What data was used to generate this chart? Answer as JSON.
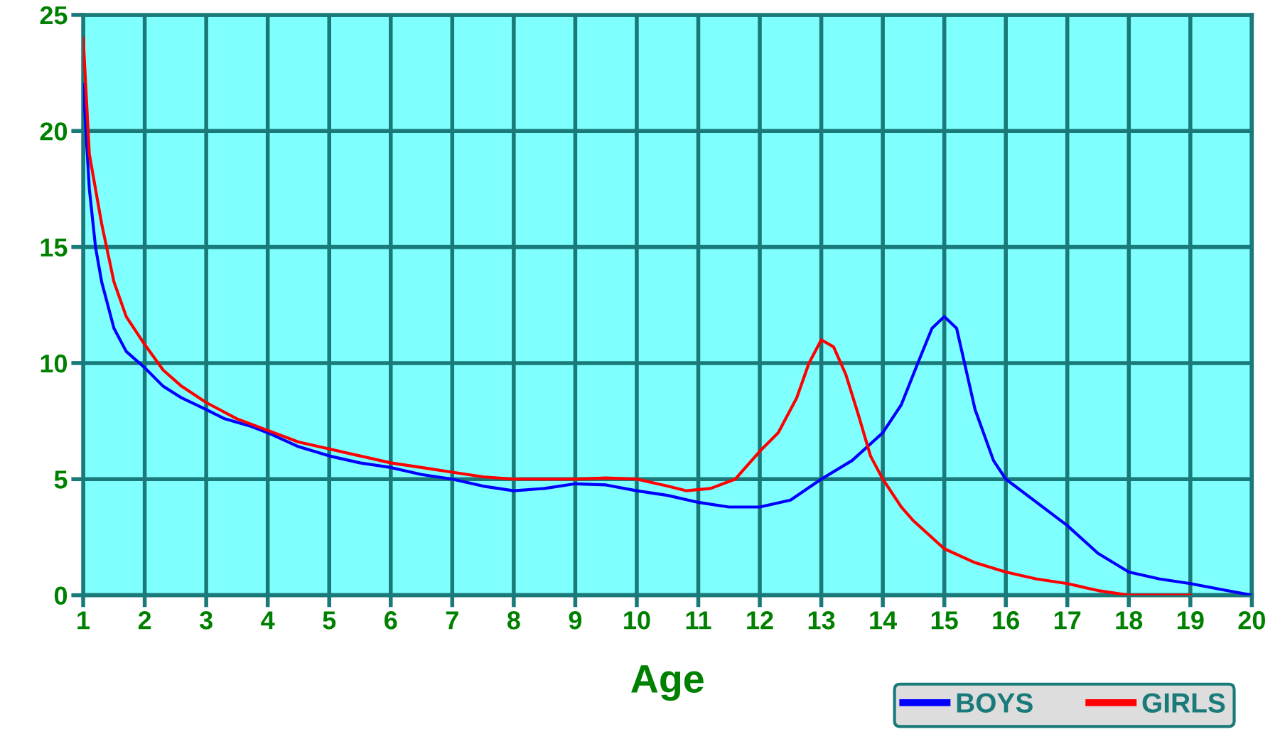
{
  "chart_data": {
    "type": "line",
    "xlabel": "Age",
    "xlim": [
      1,
      20
    ],
    "xticks": [
      1,
      2,
      3,
      4,
      5,
      6,
      7,
      8,
      9,
      10,
      11,
      12,
      13,
      14,
      15,
      16,
      17,
      18,
      19,
      20
    ],
    "ylim": [
      0,
      25
    ],
    "yticks": [
      0,
      5,
      10,
      15,
      20,
      25
    ],
    "grid": true,
    "legend": "bottom right",
    "marker": "none",
    "line_style": "solid",
    "series": [
      {
        "name": "BOYS",
        "color": "#0000ff",
        "x": [
          1,
          1.1,
          1.2,
          1.3,
          1.5,
          1.7,
          2,
          2.3,
          2.6,
          3,
          3.3,
          3.7,
          4,
          4.5,
          5,
          5.5,
          6,
          6.5,
          7,
          7.5,
          8,
          8.5,
          9,
          9.5,
          10,
          10.5,
          11,
          11.5,
          12,
          12.5,
          13,
          13.5,
          14,
          14.3,
          14.6,
          14.8,
          15,
          15.2,
          15.5,
          15.8,
          16,
          16.5,
          17,
          17.5,
          18,
          18.5,
          19,
          19.5,
          20
        ],
        "values": [
          22,
          17.5,
          15,
          13.5,
          11.5,
          10.5,
          9.8,
          9,
          8.5,
          8,
          7.6,
          7.3,
          7,
          6.4,
          6,
          5.7,
          5.5,
          5.2,
          5,
          4.7,
          4.5,
          4.6,
          4.8,
          4.75,
          4.5,
          4.3,
          4,
          3.8,
          3.8,
          4.1,
          5,
          5.8,
          7,
          8.2,
          10.2,
          11.5,
          12,
          11.5,
          8,
          5.8,
          5,
          4,
          3,
          1.8,
          1,
          0.7,
          0.5,
          0.25,
          0
        ]
      },
      {
        "name": "GIRLS",
        "color": "#ff0000",
        "x": [
          1,
          1.1,
          1.3,
          1.5,
          1.7,
          2,
          2.3,
          2.6,
          3,
          3.5,
          4,
          4.5,
          5,
          5.5,
          6,
          6.5,
          7,
          7.5,
          8,
          8.5,
          9,
          9.5,
          10,
          10.5,
          10.8,
          11.2,
          11.6,
          12,
          12.3,
          12.6,
          12.8,
          13,
          13.2,
          13.4,
          13.6,
          13.8,
          14,
          14.3,
          14.5,
          15,
          15.5,
          16,
          16.5,
          17,
          17.5,
          18,
          18.5,
          19
        ],
        "values": [
          24,
          19,
          16,
          13.5,
          12,
          10.8,
          9.7,
          9,
          8.3,
          7.6,
          7.1,
          6.6,
          6.3,
          6,
          5.7,
          5.5,
          5.3,
          5.1,
          5,
          5,
          5,
          5.05,
          5,
          4.7,
          4.5,
          4.6,
          5,
          6.2,
          7,
          8.5,
          10,
          11,
          10.7,
          9.5,
          7.8,
          6,
          5,
          3.8,
          3.2,
          2,
          1.4,
          1,
          0.7,
          0.5,
          0.2,
          0,
          0,
          0
        ]
      }
    ]
  }
}
